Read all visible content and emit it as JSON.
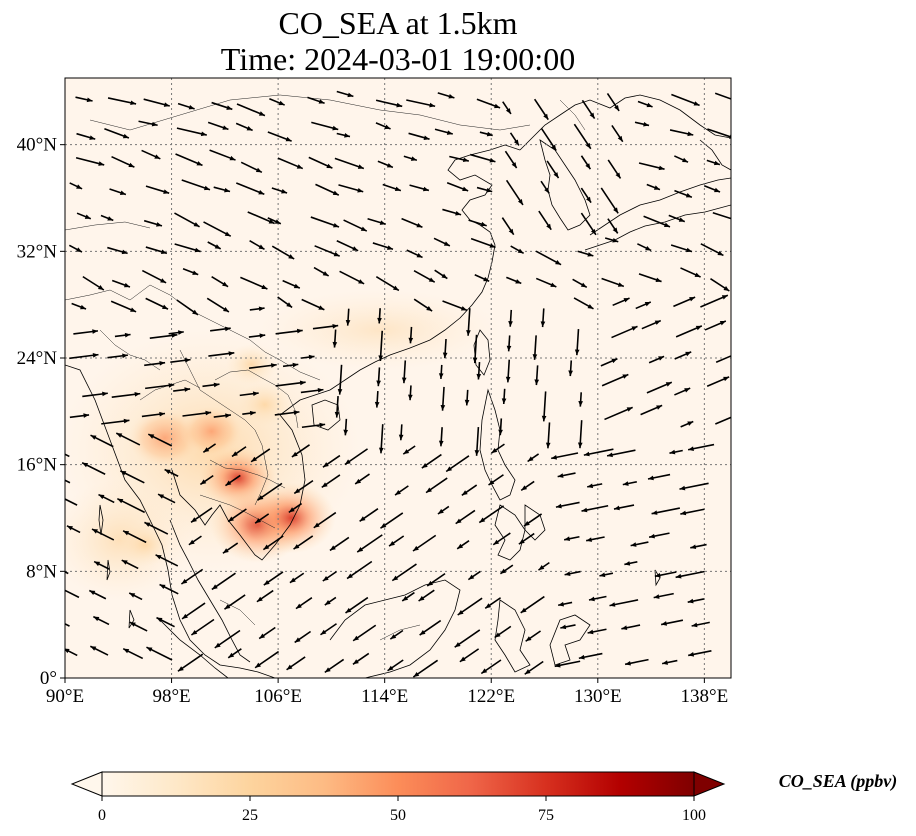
{
  "title": {
    "line1": "CO_SEA at 1.5km",
    "line2": "Time: 2024-03-01 19:00:00"
  },
  "map": {
    "lon_range": [
      90,
      140
    ],
    "lat_range": [
      0,
      45
    ],
    "x_ticks": [
      {
        "lon": 90,
        "label": "90°E"
      },
      {
        "lon": 98,
        "label": "98°E"
      },
      {
        "lon": 106,
        "label": "106°E"
      },
      {
        "lon": 114,
        "label": "114°E"
      },
      {
        "lon": 122,
        "label": "122°E"
      },
      {
        "lon": 130,
        "label": "130°E"
      },
      {
        "lon": 138,
        "label": "138°E"
      }
    ],
    "y_ticks": [
      {
        "lat": 0,
        "label": "0°"
      },
      {
        "lat": 8,
        "label": "8°N"
      },
      {
        "lat": 16,
        "label": "16°N"
      },
      {
        "lat": 24,
        "label": "24°N"
      },
      {
        "lat": 32,
        "label": "32°N"
      },
      {
        "lat": 40,
        "label": "40°N"
      }
    ],
    "gridlines": true,
    "background_color": "#fff5eb"
  },
  "colorbar": {
    "label": "CO_SEA (ppbv)",
    "colormap": "OrRd",
    "min": 0,
    "max": 100,
    "extend": "both",
    "ticks": [
      {
        "value": 0,
        "label": "0"
      },
      {
        "value": 25,
        "label": "25"
      },
      {
        "value": 50,
        "label": "50"
      },
      {
        "value": 75,
        "label": "75"
      },
      {
        "value": 100,
        "label": "100"
      }
    ],
    "colors": [
      "#fff7ec",
      "#fee8c8",
      "#fdd49e",
      "#fdbb84",
      "#fc8d59",
      "#ef6548",
      "#d7301f",
      "#b30000",
      "#7f0000"
    ]
  },
  "hotspots": [
    {
      "lon": 103,
      "lat": 15,
      "value": 60
    },
    {
      "lon": 104.5,
      "lat": 11.5,
      "value": 85
    },
    {
      "lon": 107,
      "lat": 12,
      "value": 75
    },
    {
      "lon": 97.5,
      "lat": 18,
      "value": 55
    },
    {
      "lon": 101,
      "lat": 18.5,
      "value": 40
    },
    {
      "lon": 105,
      "lat": 20.5,
      "value": 30
    },
    {
      "lon": 104,
      "lat": 23.5,
      "value": 22
    },
    {
      "lon": 96,
      "lat": 10,
      "value": 25
    }
  ]
}
